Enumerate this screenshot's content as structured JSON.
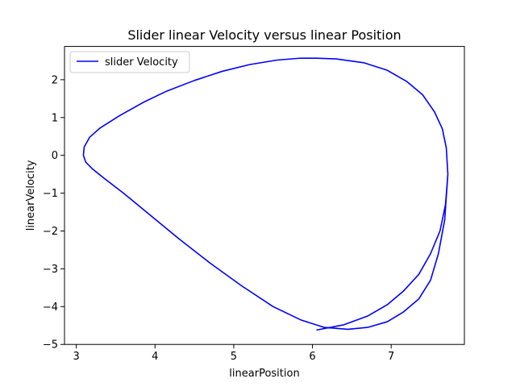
{
  "chart_data": {
    "type": "line",
    "title": "Slider linear Velocity versus linear Position",
    "xlabel": "linearPosition",
    "ylabel": "linearVelocity",
    "xlim": [
      2.85,
      7.93
    ],
    "ylim": [
      -5.0,
      2.88
    ],
    "xticks": [
      3,
      4,
      5,
      6,
      7
    ],
    "xtick_labels": [
      "3",
      "4",
      "5",
      "6",
      "7"
    ],
    "yticks": [
      -5,
      -4,
      -3,
      -2,
      -1,
      0,
      1,
      2
    ],
    "ytick_labels": [
      "−5",
      "−4",
      "−3",
      "−2",
      "−1",
      "0",
      "1",
      "2"
    ],
    "grid": false,
    "legend": {
      "location": "upper-left"
    },
    "series": [
      {
        "name": "slider Velocity",
        "color": "#0000ff",
        "x": [
          6.05,
          6.4,
          6.7,
          6.95,
          7.15,
          7.35,
          7.5,
          7.62,
          7.69,
          7.72,
          7.7,
          7.65,
          7.55,
          7.4,
          7.2,
          6.95,
          6.65,
          6.3,
          6.05,
          5.85,
          5.55,
          5.2,
          4.85,
          4.5,
          4.15,
          3.85,
          3.55,
          3.3,
          3.17,
          3.1,
          3.09,
          3.12,
          3.2,
          3.35,
          3.6,
          3.95,
          4.3,
          4.7,
          5.1,
          5.5,
          5.85,
          6.15,
          6.45,
          6.7,
          6.95,
          7.15,
          7.35,
          7.5,
          7.6,
          7.68,
          7.72
        ],
        "y": [
          -4.62,
          -4.48,
          -4.25,
          -3.95,
          -3.6,
          -3.15,
          -2.6,
          -2.0,
          -1.3,
          -0.5,
          0.2,
          0.7,
          1.15,
          1.6,
          1.95,
          2.25,
          2.45,
          2.55,
          2.57,
          2.57,
          2.52,
          2.4,
          2.22,
          1.98,
          1.7,
          1.4,
          1.05,
          0.72,
          0.48,
          0.22,
          0.0,
          -0.18,
          -0.35,
          -0.6,
          -1.0,
          -1.6,
          -2.2,
          -2.85,
          -3.45,
          -4.0,
          -4.35,
          -4.55,
          -4.6,
          -4.55,
          -4.4,
          -4.15,
          -3.8,
          -3.3,
          -2.6,
          -1.7,
          -0.5
        ]
      }
    ]
  }
}
